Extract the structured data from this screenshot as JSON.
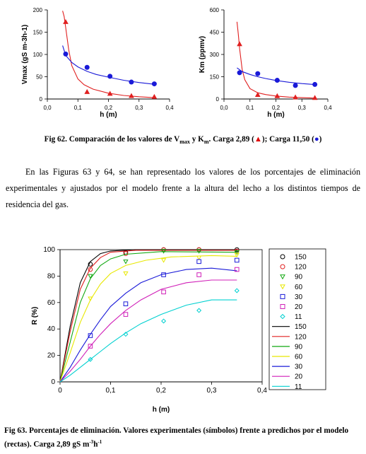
{
  "chart_data": [
    {
      "type": "scatter",
      "id": "vmax",
      "ylabel": "Vmax (gS m-3h-1)",
      "xlabel": "h (m)",
      "xlim": [
        0,
        0.4
      ],
      "ylim": [
        0,
        200
      ],
      "xticks": [
        "0,0",
        "0,1",
        "0,2",
        "0,3",
        "0,4"
      ],
      "yticks": [
        "0",
        "50",
        "100",
        "150",
        "200"
      ],
      "series": [
        {
          "color": "#e02020",
          "marker": "triangle",
          "x": [
            0.06,
            0.13,
            0.205,
            0.275,
            0.35
          ],
          "y": [
            173,
            16,
            12,
            7,
            5
          ],
          "fit": [
            [
              0.05,
              198
            ],
            [
              0.055,
              185
            ],
            [
              0.06,
              160
            ],
            [
              0.07,
              110
            ],
            [
              0.08,
              75
            ],
            [
              0.1,
              45
            ],
            [
              0.12,
              32
            ],
            [
              0.15,
              22
            ],
            [
              0.2,
              13
            ],
            [
              0.25,
              8
            ],
            [
              0.3,
              5
            ],
            [
              0.35,
              3
            ]
          ]
        },
        {
          "color": "#1a1ad8",
          "marker": "circle",
          "x": [
            0.06,
            0.13,
            0.205,
            0.275,
            0.35
          ],
          "y": [
            101,
            71,
            51,
            38,
            34
          ],
          "fit": [
            [
              0.05,
              120
            ],
            [
              0.06,
              98
            ],
            [
              0.08,
              82
            ],
            [
              0.1,
              72
            ],
            [
              0.13,
              62
            ],
            [
              0.16,
              55
            ],
            [
              0.2,
              49
            ],
            [
              0.25,
              42
            ],
            [
              0.3,
              37
            ],
            [
              0.35,
              33
            ]
          ]
        }
      ]
    },
    {
      "type": "scatter",
      "id": "km",
      "ylabel": "Km (ppmv)",
      "xlabel": "h (m)",
      "xlim": [
        0,
        0.4
      ],
      "ylim": [
        0,
        600
      ],
      "xticks": [
        "0,0",
        "0,1",
        "0,2",
        "0,3",
        "0,4"
      ],
      "yticks": [
        "0",
        "150",
        "300",
        "450",
        "600"
      ],
      "series": [
        {
          "color": "#e02020",
          "marker": "triangle",
          "x": [
            0.06,
            0.13,
            0.205,
            0.275,
            0.35
          ],
          "y": [
            370,
            28,
            20,
            12,
            8
          ],
          "fit": [
            [
              0.05,
              520
            ],
            [
              0.055,
              440
            ],
            [
              0.06,
              340
            ],
            [
              0.07,
              200
            ],
            [
              0.08,
              130
            ],
            [
              0.1,
              70
            ],
            [
              0.13,
              42
            ],
            [
              0.16,
              30
            ],
            [
              0.2,
              20
            ],
            [
              0.25,
              13
            ],
            [
              0.3,
              9
            ],
            [
              0.35,
              6
            ]
          ]
        },
        {
          "color": "#1a1ad8",
          "marker": "circle",
          "x": [
            0.06,
            0.13,
            0.205,
            0.275,
            0.35
          ],
          "y": [
            177,
            171,
            126,
            91,
            98
          ],
          "fit": [
            [
              0.05,
              210
            ],
            [
              0.07,
              185
            ],
            [
              0.1,
              165
            ],
            [
              0.13,
              150
            ],
            [
              0.16,
              138
            ],
            [
              0.2,
              125
            ],
            [
              0.25,
              113
            ],
            [
              0.3,
              104
            ],
            [
              0.35,
              97
            ]
          ]
        }
      ]
    },
    {
      "type": "line",
      "id": "removal",
      "ylabel": "R (%)",
      "xlabel": "h (m)",
      "xlim": [
        0,
        0.4
      ],
      "ylim": [
        0,
        100
      ],
      "xticks": [
        "0",
        "0,1",
        "0,2",
        "0,3",
        "0,4"
      ],
      "yticks": [
        "0",
        "20",
        "40",
        "60",
        "80",
        "100"
      ],
      "series": [
        {
          "name": "150",
          "color": "#000000",
          "marker": "circle",
          "x": [
            0.06,
            0.13,
            0.205,
            0.275,
            0.35
          ],
          "y": [
            89,
            98,
            100,
            100,
            100
          ],
          "fit": [
            [
              0,
              0
            ],
            [
              0.02,
              42
            ],
            [
              0.04,
              75
            ],
            [
              0.06,
              91
            ],
            [
              0.08,
              97
            ],
            [
              0.1,
              99
            ],
            [
              0.15,
              100
            ],
            [
              0.35,
              100
            ]
          ]
        },
        {
          "name": "120",
          "color": "#e02020",
          "marker": "circle",
          "x": [
            0.06,
            0.13,
            0.205,
            0.275,
            0.35
          ],
          "y": [
            85,
            97,
            100,
            100,
            99
          ],
          "fit": [
            [
              0,
              0
            ],
            [
              0.02,
              38
            ],
            [
              0.04,
              70
            ],
            [
              0.06,
              86
            ],
            [
              0.08,
              94
            ],
            [
              0.1,
              98
            ],
            [
              0.15,
              99.5
            ],
            [
              0.35,
              99.5
            ]
          ]
        },
        {
          "name": "90",
          "color": "#11a811",
          "marker": "triangle-down",
          "x": [
            0.06,
            0.13,
            0.205,
            0.275,
            0.35
          ],
          "y": [
            80,
            91,
            99,
            99,
            98
          ],
          "fit": [
            [
              0,
              0
            ],
            [
              0.02,
              30
            ],
            [
              0.04,
              60
            ],
            [
              0.06,
              78
            ],
            [
              0.08,
              88
            ],
            [
              0.1,
              93
            ],
            [
              0.13,
              96.5
            ],
            [
              0.2,
              98.5
            ],
            [
              0.35,
              98
            ]
          ]
        },
        {
          "name": "60",
          "color": "#e8e800",
          "marker": "triangle-down",
          "x": [
            0.06,
            0.13,
            0.205,
            0.275,
            0.35
          ],
          "y": [
            63,
            82,
            92,
            94,
            96
          ],
          "fit": [
            [
              0,
              0
            ],
            [
              0.02,
              22
            ],
            [
              0.04,
              45
            ],
            [
              0.06,
              62
            ],
            [
              0.08,
              74
            ],
            [
              0.1,
              82
            ],
            [
              0.13,
              88
            ],
            [
              0.17,
              92
            ],
            [
              0.22,
              94.5
            ],
            [
              0.3,
              95.5
            ],
            [
              0.35,
              95
            ]
          ]
        },
        {
          "name": "30",
          "color": "#1a1ad8",
          "marker": "square",
          "x": [
            0.06,
            0.13,
            0.205,
            0.275,
            0.35
          ],
          "y": [
            35,
            59,
            81,
            91,
            92
          ],
          "fit": [
            [
              0,
              0
            ],
            [
              0.02,
              11
            ],
            [
              0.04,
              24
            ],
            [
              0.06,
              36
            ],
            [
              0.08,
              47
            ],
            [
              0.1,
              57
            ],
            [
              0.13,
              67
            ],
            [
              0.16,
              75
            ],
            [
              0.2,
              81
            ],
            [
              0.25,
              85
            ],
            [
              0.3,
              86
            ],
            [
              0.35,
              84
            ]
          ]
        },
        {
          "name": "20",
          "color": "#d01fb8",
          "marker": "square",
          "x": [
            0.06,
            0.13,
            0.205,
            0.275,
            0.35
          ],
          "y": [
            27,
            51,
            68,
            81,
            85
          ],
          "fit": [
            [
              0,
              0
            ],
            [
              0.02,
              8
            ],
            [
              0.04,
              17
            ],
            [
              0.06,
              27
            ],
            [
              0.08,
              36
            ],
            [
              0.1,
              44
            ],
            [
              0.13,
              54
            ],
            [
              0.16,
              62
            ],
            [
              0.2,
              70
            ],
            [
              0.25,
              75
            ],
            [
              0.3,
              77
            ],
            [
              0.35,
              77
            ]
          ]
        },
        {
          "name": "11",
          "color": "#00d0d0",
          "marker": "diamond",
          "x": [
            0.06,
            0.13,
            0.205,
            0.275,
            0.35
          ],
          "y": [
            17,
            36,
            46,
            54,
            69
          ],
          "fit": [
            [
              0,
              0
            ],
            [
              0.02,
              5
            ],
            [
              0.04,
              11
            ],
            [
              0.06,
              17
            ],
            [
              0.08,
              23
            ],
            [
              0.1,
              29
            ],
            [
              0.13,
              37
            ],
            [
              0.16,
              44
            ],
            [
              0.2,
              51
            ],
            [
              0.25,
              58
            ],
            [
              0.3,
              62
            ],
            [
              0.35,
              62
            ]
          ]
        }
      ]
    }
  ],
  "captions": {
    "fig62_prefix": "Fig 62. Comparación de los valores de V",
    "fig62_vsub": "max",
    "fig62_y": " y K",
    "fig62_ksub": "m",
    "fig62_carga1": ". Carga 2,89 (",
    "fig62_tri": "▲",
    "fig62_mid": "); Carga 11,50 (",
    "fig62_dot": "●",
    "fig62_end": ")",
    "paragraph": "En las Figuras 63 y 64, se han representado los valores de los porcentajes de eliminación experimentales y ajustados por el modelo frente a la altura del lecho a los distintos tiempos de residencia del gas.",
    "fig63": "Fig 63. Porcentajes de eliminación. Valores experimentales (símbolos) frente a predichos por el modelo (rectas). Carga 2,89 gS m",
    "fig63_sup1": "-3",
    "fig63_h": "h",
    "fig63_sup2": "-1"
  }
}
